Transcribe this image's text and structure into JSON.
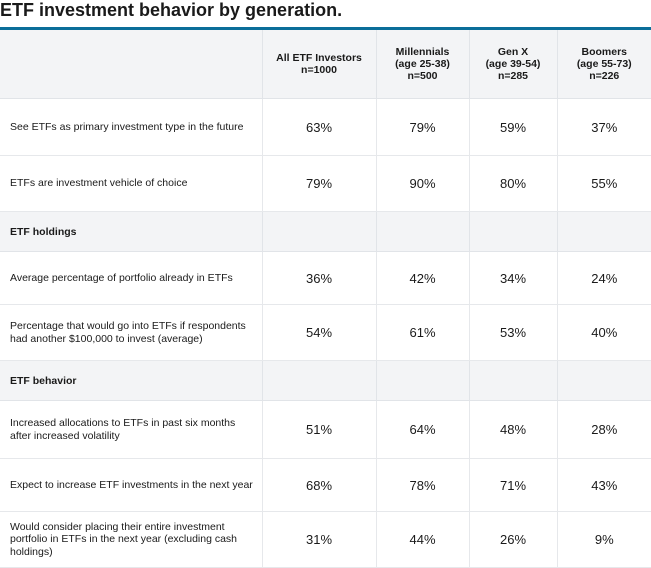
{
  "title": "ETF investment behavior by generation.",
  "columns": [
    {
      "lines": [
        "All ETF Investors",
        "n=1000"
      ]
    },
    {
      "lines": [
        "Millennials",
        "(age 25-38)",
        "n=500"
      ]
    },
    {
      "lines": [
        "Gen X",
        "(age 39-54)",
        "n=285"
      ]
    },
    {
      "lines": [
        "Boomers",
        "(age 55-73)",
        "n=226"
      ]
    }
  ],
  "rows": [
    {
      "label": "See ETFs as primary investment type in the future",
      "values": [
        "63%",
        "79%",
        "59%",
        "37%"
      ]
    },
    {
      "label": "ETFs are investment vehicle of choice",
      "values": [
        "79%",
        "90%",
        "80%",
        "55%"
      ]
    }
  ],
  "sections": [
    {
      "title": "ETF holdings",
      "rows": [
        {
          "label": "Average percentage of portfolio already in ETFs",
          "values": [
            "36%",
            "42%",
            "34%",
            "24%"
          ]
        },
        {
          "label": "Percentage that would go into ETFs if respondents had another $100,000 to invest (average)",
          "values": [
            "54%",
            "61%",
            "53%",
            "40%"
          ]
        }
      ]
    },
    {
      "title": "ETF behavior",
      "rows": [
        {
          "label": "Increased allocations to ETFs in past six months after increased volatility",
          "values": [
            "51%",
            "64%",
            "48%",
            "28%"
          ]
        },
        {
          "label": "Expect to increase ETF investments in the next year",
          "values": [
            "68%",
            "78%",
            "71%",
            "43%"
          ]
        },
        {
          "label": "Would consider placing their entire investment portfolio in ETFs in the next year (excluding cash holdings)",
          "values": [
            "31%",
            "44%",
            "26%",
            "9%"
          ]
        }
      ]
    }
  ],
  "accent_color": "#0b6e99"
}
